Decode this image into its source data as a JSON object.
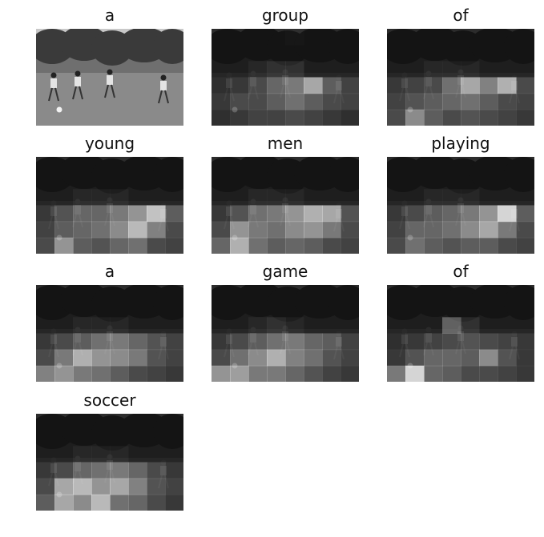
{
  "panels": [
    {
      "word": "a",
      "attention": [
        [
          0.05,
          0.05,
          0.05,
          0.05,
          0.05,
          0.05,
          0.05,
          0.05
        ],
        [
          0.05,
          0.05,
          0.05,
          0.05,
          0.05,
          0.05,
          0.05,
          0.05
        ],
        [
          0.05,
          0.05,
          0.05,
          0.05,
          0.05,
          0.05,
          0.05,
          0.05
        ],
        [
          0.05,
          0.05,
          0.05,
          0.05,
          0.05,
          0.05,
          0.05,
          0.05
        ],
        [
          0.05,
          0.05,
          0.05,
          0.05,
          0.05,
          0.05,
          0.05,
          0.05
        ],
        [
          0.05,
          0.05,
          0.05,
          0.05,
          0.05,
          0.05,
          0.05,
          0.05
        ]
      ],
      "original": true
    },
    {
      "word": "group",
      "attention": [
        [
          0.0,
          0.0,
          0.0,
          0.0,
          0.02,
          0.0,
          0.0,
          0.0
        ],
        [
          0.0,
          0.0,
          0.0,
          0.0,
          0.0,
          0.0,
          0.0,
          0.0
        ],
        [
          0.0,
          0.0,
          0.05,
          0.1,
          0.1,
          0.0,
          0.0,
          0.0
        ],
        [
          0.05,
          0.1,
          0.2,
          0.35,
          0.45,
          0.7,
          0.3,
          0.15
        ],
        [
          0.1,
          0.2,
          0.2,
          0.3,
          0.4,
          0.3,
          0.2,
          0.15
        ],
        [
          0.05,
          0.1,
          0.15,
          0.15,
          0.2,
          0.15,
          0.1,
          0.05
        ]
      ]
    },
    {
      "word": "of",
      "attention": [
        [
          0.0,
          0.0,
          0.0,
          0.0,
          0.0,
          0.0,
          0.0,
          0.0
        ],
        [
          0.0,
          0.0,
          0.0,
          0.0,
          0.0,
          0.0,
          0.0,
          0.0
        ],
        [
          0.0,
          0.0,
          0.05,
          0.05,
          0.05,
          0.0,
          0.0,
          0.0
        ],
        [
          0.1,
          0.15,
          0.2,
          0.4,
          0.7,
          0.5,
          0.75,
          0.2
        ],
        [
          0.15,
          0.25,
          0.3,
          0.35,
          0.4,
          0.3,
          0.2,
          0.15
        ],
        [
          0.2,
          0.55,
          0.3,
          0.2,
          0.25,
          0.2,
          0.15,
          0.1
        ]
      ]
    },
    {
      "word": "young",
      "attention": [
        [
          0.0,
          0.0,
          0.0,
          0.0,
          0.0,
          0.0,
          0.0,
          0.0
        ],
        [
          0.0,
          0.0,
          0.0,
          0.0,
          0.0,
          0.0,
          0.0,
          0.0
        ],
        [
          0.0,
          0.0,
          0.05,
          0.05,
          0.05,
          0.0,
          0.0,
          0.0
        ],
        [
          0.1,
          0.25,
          0.35,
          0.35,
          0.45,
          0.6,
          0.85,
          0.3
        ],
        [
          0.15,
          0.3,
          0.35,
          0.4,
          0.55,
          0.8,
          0.5,
          0.2
        ],
        [
          0.2,
          0.6,
          0.3,
          0.25,
          0.35,
          0.4,
          0.2,
          0.15
        ]
      ]
    },
    {
      "word": "men",
      "attention": [
        [
          0.0,
          0.0,
          0.0,
          0.0,
          0.0,
          0.0,
          0.0,
          0.0
        ],
        [
          0.0,
          0.0,
          0.0,
          0.0,
          0.0,
          0.0,
          0.0,
          0.0
        ],
        [
          0.0,
          0.0,
          0.05,
          0.05,
          0.05,
          0.0,
          0.0,
          0.0
        ],
        [
          0.1,
          0.25,
          0.4,
          0.45,
          0.6,
          0.75,
          0.7,
          0.25
        ],
        [
          0.2,
          0.6,
          0.45,
          0.4,
          0.55,
          0.6,
          0.45,
          0.2
        ],
        [
          0.35,
          0.75,
          0.4,
          0.3,
          0.35,
          0.3,
          0.2,
          0.15
        ]
      ]
    },
    {
      "word": "playing",
      "attention": [
        [
          0.0,
          0.0,
          0.0,
          0.0,
          0.0,
          0.0,
          0.0,
          0.0
        ],
        [
          0.0,
          0.0,
          0.0,
          0.0,
          0.0,
          0.0,
          0.0,
          0.0
        ],
        [
          0.0,
          0.0,
          0.05,
          0.05,
          0.05,
          0.0,
          0.0,
          0.0
        ],
        [
          0.1,
          0.2,
          0.3,
          0.35,
          0.45,
          0.6,
          0.95,
          0.3
        ],
        [
          0.15,
          0.35,
          0.35,
          0.4,
          0.55,
          0.7,
          0.45,
          0.2
        ],
        [
          0.2,
          0.4,
          0.3,
          0.25,
          0.3,
          0.3,
          0.2,
          0.15
        ]
      ]
    },
    {
      "word": "a",
      "attention": [
        [
          0.0,
          0.0,
          0.0,
          0.0,
          0.0,
          0.0,
          0.0,
          0.0
        ],
        [
          0.0,
          0.0,
          0.0,
          0.0,
          0.0,
          0.0,
          0.0,
          0.0
        ],
        [
          0.0,
          0.0,
          0.05,
          0.05,
          0.05,
          0.0,
          0.0,
          0.0
        ],
        [
          0.1,
          0.2,
          0.3,
          0.4,
          0.45,
          0.35,
          0.25,
          0.15
        ],
        [
          0.2,
          0.45,
          0.75,
          0.6,
          0.55,
          0.45,
          0.25,
          0.15
        ],
        [
          0.5,
          0.6,
          0.45,
          0.4,
          0.3,
          0.2,
          0.15,
          0.1
        ]
      ]
    },
    {
      "word": "game",
      "attention": [
        [
          0.0,
          0.0,
          0.0,
          0.0,
          0.0,
          0.0,
          0.0,
          0.0
        ],
        [
          0.0,
          0.0,
          0.0,
          0.0,
          0.0,
          0.0,
          0.0,
          0.0
        ],
        [
          0.0,
          0.0,
          0.05,
          0.1,
          0.05,
          0.0,
          0.0,
          0.0
        ],
        [
          0.1,
          0.2,
          0.3,
          0.4,
          0.45,
          0.35,
          0.3,
          0.15
        ],
        [
          0.2,
          0.4,
          0.55,
          0.75,
          0.5,
          0.4,
          0.25,
          0.15
        ],
        [
          0.6,
          0.65,
          0.45,
          0.45,
          0.35,
          0.25,
          0.15,
          0.1
        ]
      ]
    },
    {
      "word": "of",
      "attention": [
        [
          0.0,
          0.0,
          0.0,
          0.0,
          0.0,
          0.0,
          0.0,
          0.0
        ],
        [
          0.0,
          0.0,
          0.0,
          0.0,
          0.0,
          0.0,
          0.0,
          0.0
        ],
        [
          0.0,
          0.0,
          0.0,
          0.35,
          0.1,
          0.0,
          0.0,
          0.0
        ],
        [
          0.05,
          0.1,
          0.15,
          0.2,
          0.25,
          0.2,
          0.15,
          0.1
        ],
        [
          0.1,
          0.25,
          0.35,
          0.35,
          0.3,
          0.55,
          0.25,
          0.1
        ],
        [
          0.45,
          0.95,
          0.35,
          0.3,
          0.2,
          0.2,
          0.15,
          0.1
        ]
      ]
    },
    {
      "word": "soccer",
      "attention": [
        [
          0.0,
          0.0,
          0.0,
          0.0,
          0.0,
          0.0,
          0.0,
          0.0
        ],
        [
          0.0,
          0.0,
          0.0,
          0.0,
          0.0,
          0.0,
          0.0,
          0.0
        ],
        [
          0.0,
          0.0,
          0.05,
          0.05,
          0.05,
          0.0,
          0.0,
          0.0
        ],
        [
          0.1,
          0.2,
          0.35,
          0.4,
          0.45,
          0.35,
          0.2,
          0.1
        ],
        [
          0.2,
          0.7,
          0.8,
          0.6,
          0.7,
          0.5,
          0.25,
          0.15
        ],
        [
          0.3,
          0.7,
          0.55,
          0.8,
          0.4,
          0.35,
          0.2,
          0.1
        ]
      ]
    }
  ]
}
